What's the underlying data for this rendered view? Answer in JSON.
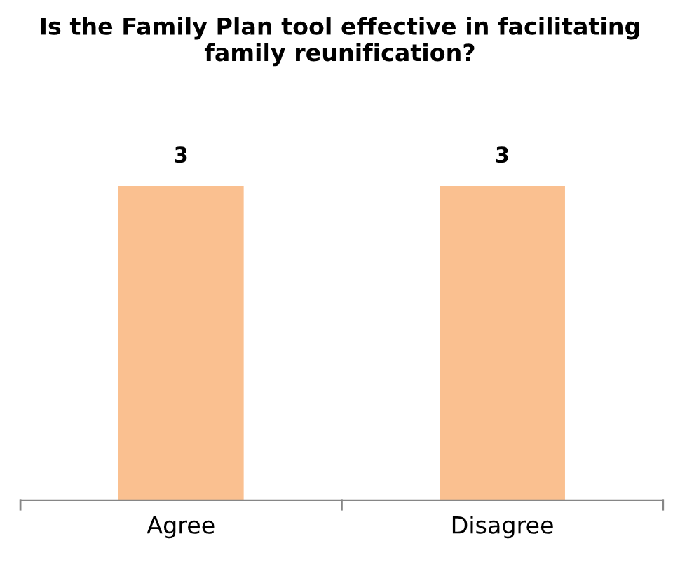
{
  "chart_data": {
    "type": "bar",
    "title": "Is the Family Plan tool effective in facilitating family reunification?",
    "categories": [
      "Agree",
      "Disagree"
    ],
    "values": [
      3,
      3
    ],
    "color": "#fac090",
    "data_labels": true,
    "grid": false,
    "legend": false,
    "tick_labels": "x"
  }
}
